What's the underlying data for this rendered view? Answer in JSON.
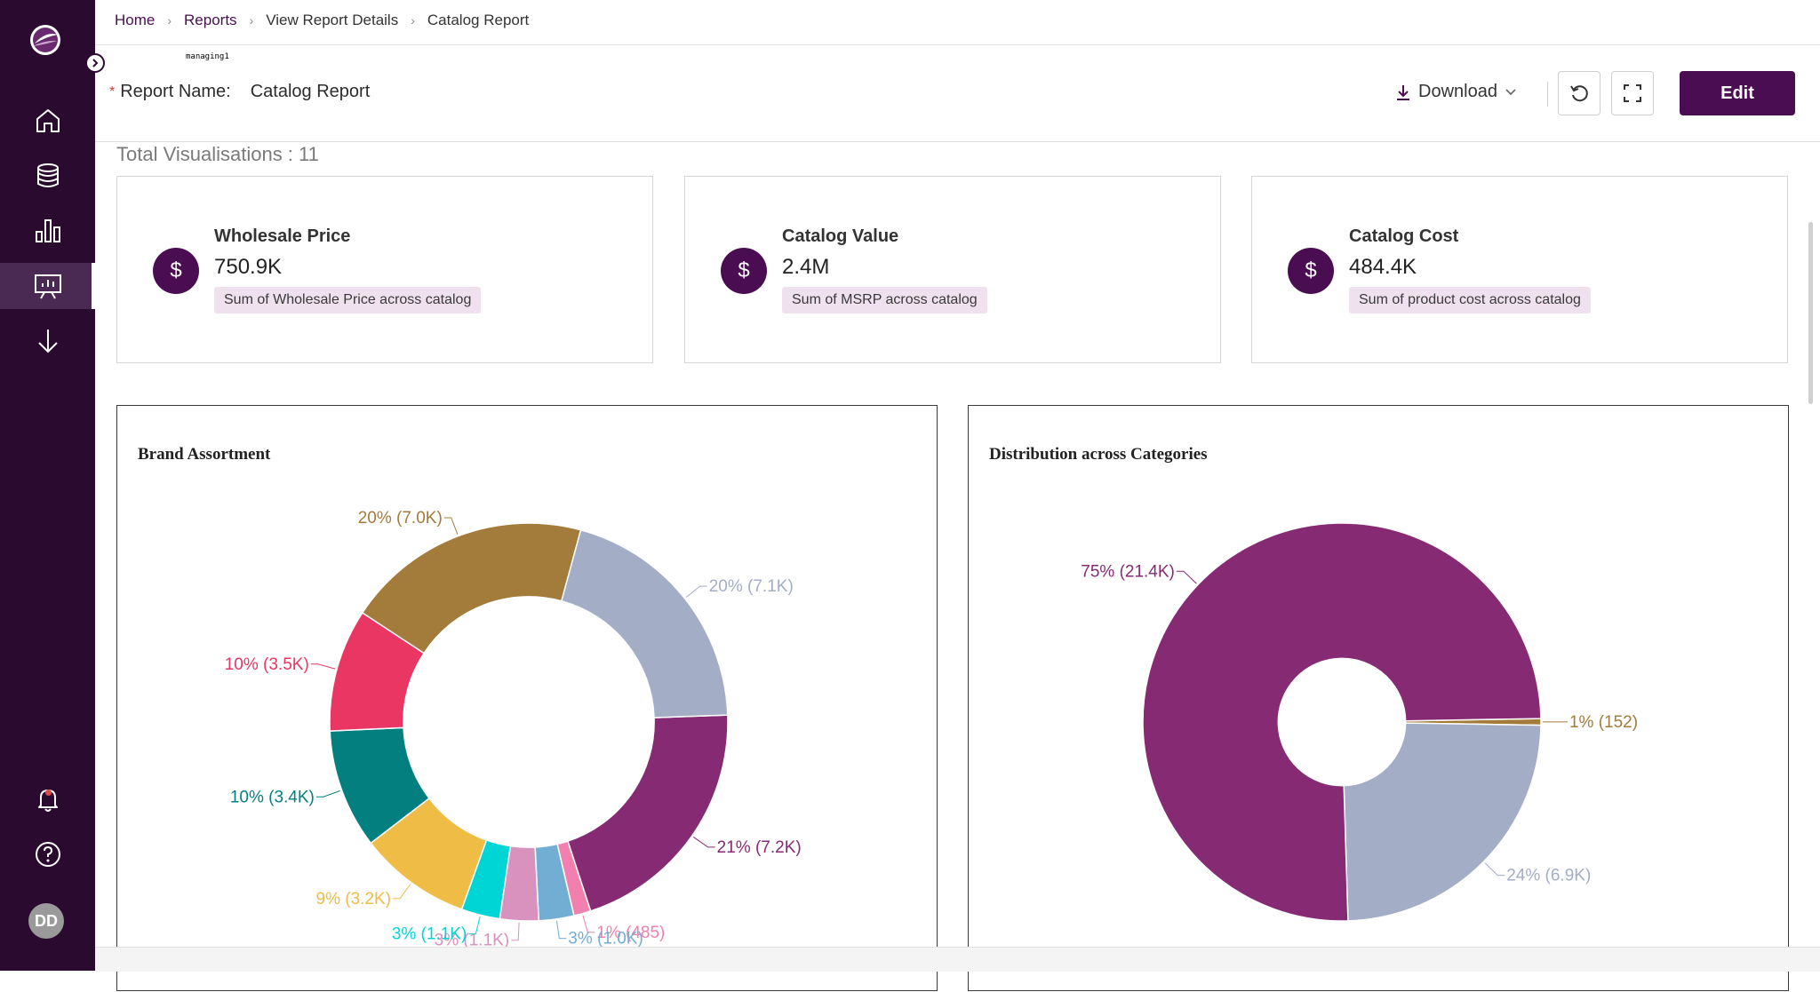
{
  "sidebar": {
    "items": [
      {
        "icon": "home-icon"
      },
      {
        "icon": "database-icon"
      },
      {
        "icon": "bar-chart-icon"
      },
      {
        "icon": "presentation-icon",
        "active": true
      },
      {
        "icon": "download-arrow-icon"
      }
    ],
    "bottom": [
      {
        "icon": "bell-icon"
      },
      {
        "icon": "help-icon"
      }
    ],
    "avatar_initials": "DD"
  },
  "breadcrumb": {
    "home": "Home",
    "reports": "Reports",
    "details": "View Report Details",
    "current": "Catalog Report"
  },
  "tiny_label": "managing1",
  "report": {
    "required_mark": "*",
    "name_label": "Report Name:",
    "name_value": "Catalog Report"
  },
  "toolbar": {
    "download_label": "Download",
    "edit_label": "Edit"
  },
  "total_visualisations": "Total Visualisations : 11",
  "kpis": [
    {
      "title": "Wholesale Price",
      "value": "750.9K",
      "description": "Sum of Wholesale Price across catalog",
      "icon_symbol": "$"
    },
    {
      "title": "Catalog Value",
      "value": "2.4M",
      "description": "Sum of MSRP across catalog",
      "icon_symbol": "$"
    },
    {
      "title": "Catalog Cost",
      "value": "484.4K",
      "description": "Sum of product cost across catalog",
      "icon_symbol": "$"
    }
  ],
  "colors": {
    "brand": "#4b0d52",
    "sidebar": "#2a0a2e"
  },
  "chart_data": [
    {
      "type": "pie",
      "title": "Brand Assortment",
      "hole": 0.63,
      "slices": [
        {
          "value": 7200,
          "label": "21% (7.2K)",
          "color": "#862a74"
        },
        {
          "value": 485,
          "label": "1% (485)",
          "color": "#f17fb0"
        },
        {
          "value": 1000,
          "label": "3% (1.0K)",
          "color": "#72aed4"
        },
        {
          "value": 1100,
          "label": "3% (1.1K)",
          "color": "#d991bd"
        },
        {
          "value": 1100,
          "label": "3% (1.1K)",
          "color": "#00d5d6"
        },
        {
          "value": 3200,
          "label": "9% (3.2K)",
          "color": "#efbc45"
        },
        {
          "value": 3400,
          "label": "10% (3.4K)",
          "color": "#047f7f"
        },
        {
          "value": 3500,
          "label": "10% (3.5K)",
          "color": "#ea3663"
        },
        {
          "value": 7000,
          "label": "20% (7.0K)",
          "color": "#a37c3b"
        },
        {
          "value": 7100,
          "label": "20% (7.1K)",
          "color": "#a3adc6"
        }
      ]
    },
    {
      "type": "pie",
      "title": "Distribution across Categories",
      "hole": 0.32,
      "slices": [
        {
          "value": 152,
          "label": "1% (152)",
          "color": "#a37c3b"
        },
        {
          "value": 6900,
          "label": "24% (6.9K)",
          "color": "#a3adc6"
        },
        {
          "value": 21400,
          "label": "75% (21.4K)",
          "color": "#862a74"
        }
      ]
    }
  ]
}
